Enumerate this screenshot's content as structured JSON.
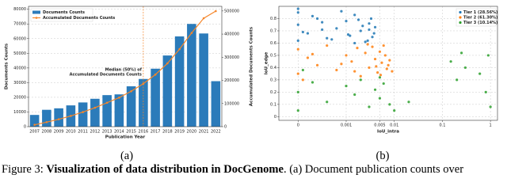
{
  "chart_data": [
    {
      "type": "bar",
      "categories": [
        "2007",
        "2008",
        "2009",
        "2010",
        "2011",
        "2012",
        "2013",
        "2014",
        "2015",
        "2016",
        "2017",
        "2018",
        "2019",
        "2020",
        "2021",
        "2022"
      ],
      "series": [
        {
          "name": "Documents Counts",
          "color": "#2b7bba",
          "values": [
            8000,
            11500,
            12500,
            14500,
            16500,
            19000,
            21500,
            22000,
            27500,
            32500,
            39500,
            48500,
            61500,
            70000,
            63500,
            31000
          ]
        },
        {
          "name": "Accumulated Documents Counts",
          "color": "#f5862a",
          "axis": "y2",
          "values": [
            8000,
            19500,
            32000,
            46500,
            63000,
            82000,
            103500,
            125500,
            153000,
            185500,
            225000,
            273500,
            335000,
            405000,
            468500,
            499500
          ]
        }
      ],
      "xlabel": "Publication Year",
      "ylabel": "Documents Counts",
      "y2label": "Accumulated Documents Counts",
      "ylim": [
        0,
        82000
      ],
      "yticks": [
        0,
        10000,
        20000,
        30000,
        40000,
        50000,
        60000,
        70000,
        80000
      ],
      "y2lim": [
        0,
        520000
      ],
      "y2ticks": [
        0,
        100000,
        200000,
        300000,
        400000,
        500000
      ],
      "annotation": {
        "lines": [
          "Median (50%) of",
          "Accumulated Documents Counts"
        ],
        "at": "2016",
        "color": "#f5862a"
      },
      "legend": "upper left",
      "grid": true
    },
    {
      "type": "scatter",
      "xlabel": "IoU_intra",
      "ylabel": "IoU_edge",
      "xscale": "symlog",
      "linthresh": 0.001,
      "xlim": [
        -0.0004,
        1.4
      ],
      "xticks": [
        0,
        0.001,
        0.005,
        0.01,
        0.1,
        1
      ],
      "ylim": [
        -0.03,
        0.9
      ],
      "yticks": [
        0,
        0.1,
        0.2,
        0.3,
        0.4,
        0.5,
        0.6,
        0.7,
        0.8
      ],
      "legend": "upper right",
      "grid": true,
      "series": [
        {
          "name": "Tier 1 (28.56%)",
          "color": "#1f77b4",
          "x": [
            0,
            0,
            0,
            0.0002,
            0.0004,
            0.0006,
            0.0008,
            0.001,
            0.0012,
            0.0015,
            0.002,
            0.0025,
            0.003,
            0.0035,
            0.004,
            0,
            0.0001,
            0.0003,
            0.0005,
            0.0007,
            0.0009,
            0.0011,
            0.0018,
            0.0022,
            0.0028,
            0.0033,
            0.0038,
            0.0005,
            0.0015,
            0.003
          ],
          "values": [
            0.62,
            0.75,
            0.85,
            0.68,
            0.8,
            0.64,
            0.72,
            0.78,
            0.66,
            0.83,
            0.7,
            0.61,
            0.76,
            0.65,
            0.73,
            0.88,
            0.69,
            0.82,
            0.71,
            0.63,
            0.86,
            0.67,
            0.79,
            0.74,
            0.62,
            0.8,
            0.68,
            0.77,
            0.6,
            0.71
          ]
        },
        {
          "name": "Tier 2 (61.30%)",
          "color": "#ff7f0e",
          "x": [
            0,
            0,
            0.0002,
            0.0004,
            0.0006,
            0.0008,
            0.001,
            0.0013,
            0.0017,
            0.002,
            0.0025,
            0.003,
            0.0035,
            0.004,
            0.0045,
            0.005,
            0.0055,
            0.006,
            0.007,
            0.008,
            0.0001,
            0.0003,
            0.0009,
            0.0015,
            0.0028,
            0.0042,
            0.0052,
            0.0065,
            0.0075,
            0.009
          ],
          "values": [
            0.55,
            0.35,
            0.48,
            0.42,
            0.58,
            0.38,
            0.5,
            0.45,
            0.56,
            0.33,
            0.52,
            0.4,
            0.57,
            0.47,
            0.36,
            0.53,
            0.44,
            0.58,
            0.39,
            0.46,
            0.3,
            0.51,
            0.43,
            0.37,
            0.59,
            0.41,
            0.34,
            0.5,
            0.42,
            0.37
          ]
        },
        {
          "name": "Tier 3 (10.14%)",
          "color": "#2ca02c",
          "x": [
            0,
            0,
            0.0003,
            0.0006,
            0.001,
            0.0015,
            0.002,
            0.003,
            0.004,
            0.005,
            0.006,
            0.008,
            0.01,
            0.02,
            0.005,
            0.0001,
            0.15,
            0.2,
            0.25,
            0.3,
            0.6,
            0.8,
            1,
            0.9
          ],
          "values": [
            0.2,
            0.05,
            0.28,
            0.12,
            0.25,
            0.18,
            0.3,
            0.08,
            0.22,
            0.15,
            0.27,
            0.1,
            0.05,
            0.12,
            0.32,
            0.38,
            0.45,
            0.3,
            0.52,
            0.4,
            0.35,
            0.2,
            0.08,
            0.5
          ]
        }
      ]
    }
  ],
  "subcaptions": [
    "(a)",
    "(b)"
  ],
  "caption": {
    "label": "Figure 3:",
    "bold": "Visualization of data distribution in DocGenome",
    "text": ". (a) Document publication counts over"
  }
}
